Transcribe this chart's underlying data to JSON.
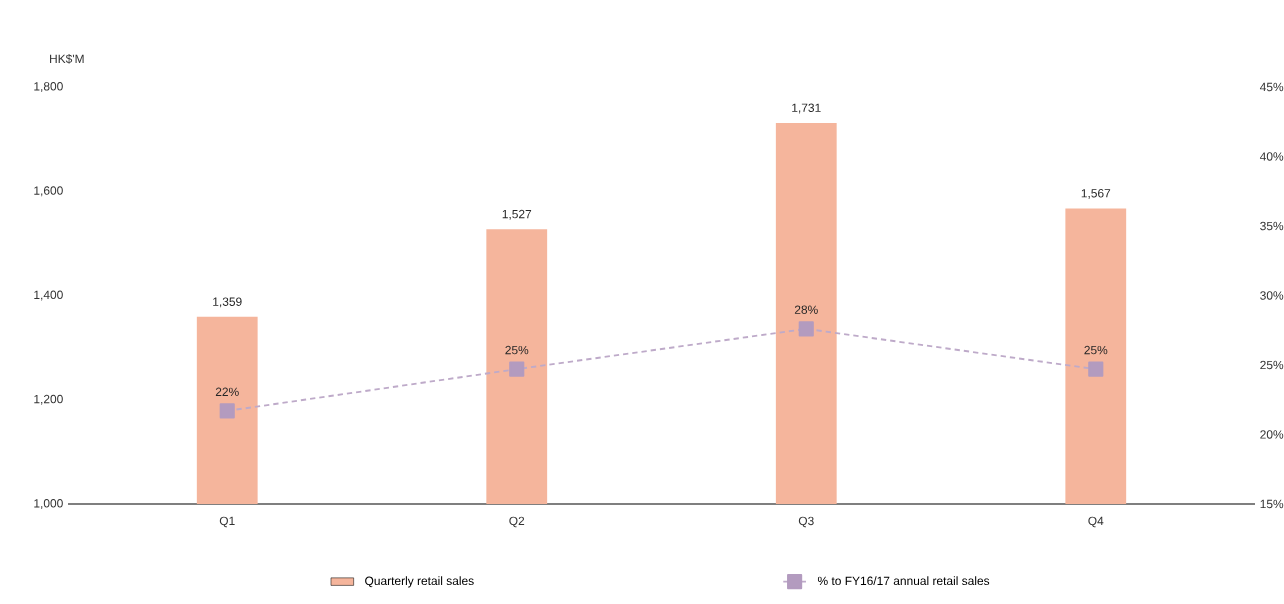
{
  "chart_data": {
    "type": "bar",
    "ylabel": "HK$'M",
    "categories": [
      "Q1",
      "Q2",
      "Q3",
      "Q4"
    ],
    "series": [
      {
        "name": "Quarterly retail sales",
        "color": "#f5b59c",
        "values": [
          1359,
          1527,
          1731,
          1567
        ],
        "value_labels": [
          "1,359",
          "1,527",
          "1,731",
          "1,567"
        ]
      },
      {
        "name": "% to FY16/17 annual retail sales",
        "type": "line",
        "axis": "y2",
        "color": "#b39bbf",
        "marker": "square",
        "line_style": "dashed",
        "values": [
          21.7,
          24.7,
          27.6,
          24.7
        ],
        "value_labels": [
          "22%",
          "25%",
          "28%",
          "25%"
        ]
      }
    ],
    "ylim": [
      1000,
      1800
    ],
    "yticks": [
      {
        "value": 1000,
        "label": "1,000"
      },
      {
        "value": 1200,
        "label": "1,200"
      },
      {
        "value": 1400,
        "label": "1,400"
      },
      {
        "value": 1600,
        "label": "1,600"
      },
      {
        "value": 1800,
        "label": "1,800"
      }
    ],
    "y2lim": [
      15,
      45
    ],
    "y2ticks": [
      {
        "value": 15,
        "label": "15%"
      },
      {
        "value": 20,
        "label": "20%"
      },
      {
        "value": 25,
        "label": "25%"
      },
      {
        "value": 30,
        "label": "30%"
      },
      {
        "value": 35,
        "label": "35%"
      },
      {
        "value": 40,
        "label": "40%"
      },
      {
        "value": 45,
        "label": "45%"
      }
    ],
    "grid": false,
    "legend": "bottom"
  }
}
